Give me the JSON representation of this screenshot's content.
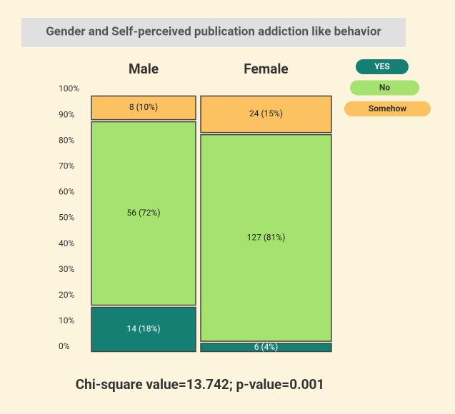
{
  "chart_data": {
    "type": "stacked_bar",
    "title": "Gender and Self-perceived publication addiction like behavior",
    "categories": [
      "Male",
      "Female"
    ],
    "series": [
      {
        "name": "YES",
        "color": "#167f74",
        "values": [
          18,
          4
        ],
        "value_labels": [
          "14 (18%)",
          "6 (4%)"
        ]
      },
      {
        "name": "No",
        "color": "#a5e26f",
        "values": [
          72,
          81
        ],
        "value_labels": [
          "56 (72%)",
          "127 (81%)"
        ]
      },
      {
        "name": "Somehow",
        "color": "#fcc261",
        "values": [
          10,
          15
        ],
        "value_labels": [
          "8 (10%)",
          "24 (15%)"
        ]
      }
    ],
    "ylim": [
      0,
      100
    ],
    "yticks": [
      {
        "value": 0,
        "label": "0%"
      },
      {
        "value": 10,
        "label": "10%"
      },
      {
        "value": 20,
        "label": "20%"
      },
      {
        "value": 30,
        "label": "30%"
      },
      {
        "value": 40,
        "label": "40%"
      },
      {
        "value": 50,
        "label": "50%"
      },
      {
        "value": 60,
        "label": "60%"
      },
      {
        "value": 70,
        "label": "70%"
      },
      {
        "value": 80,
        "label": "80%"
      },
      {
        "value": 90,
        "label": "90%"
      },
      {
        "value": 100,
        "label": "100%"
      }
    ],
    "legend": "top-right",
    "annotation": "Chi-square value=13.742; p-value=0.001"
  }
}
